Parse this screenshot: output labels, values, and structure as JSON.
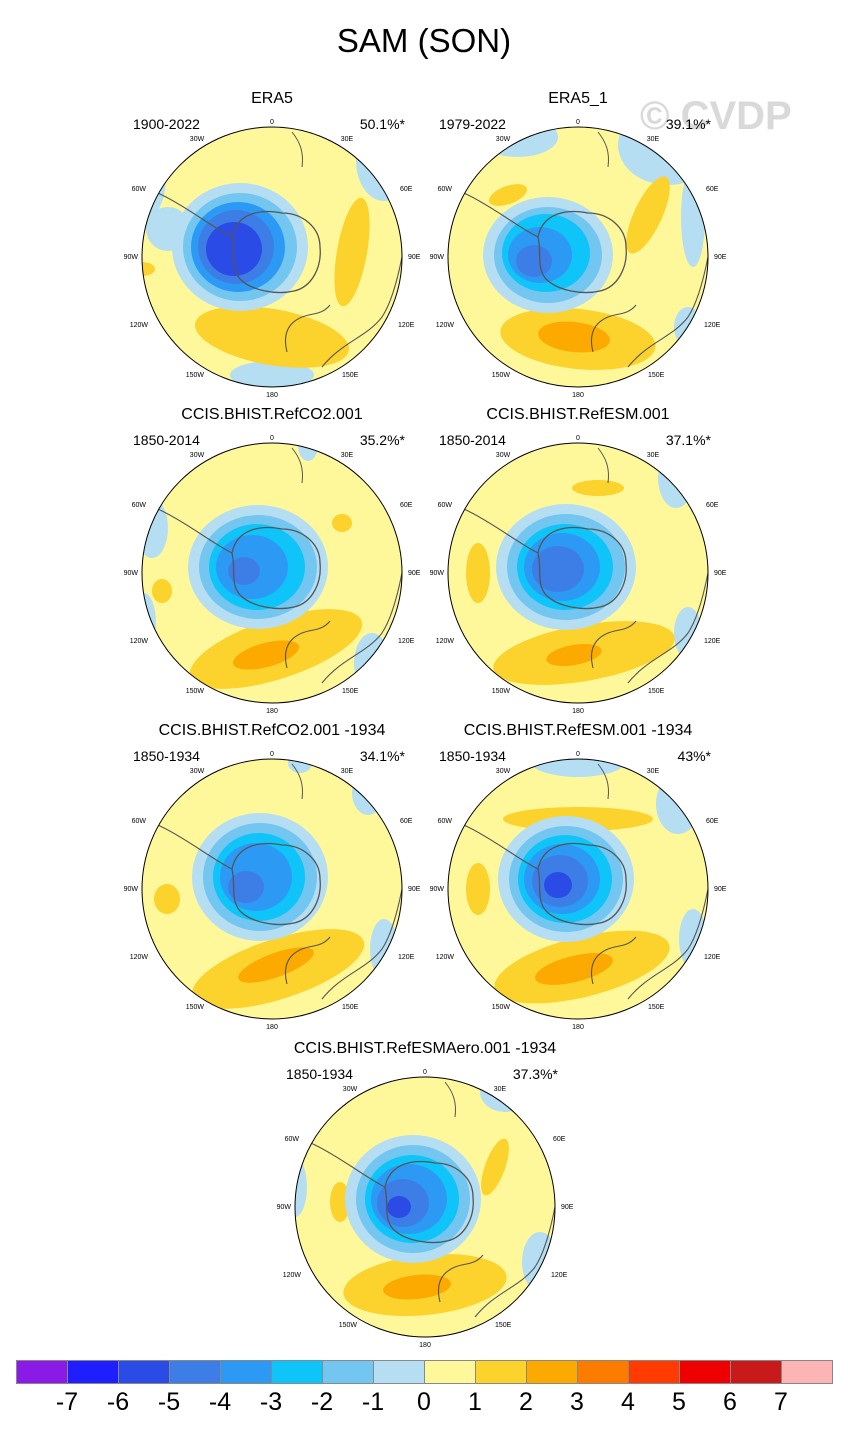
{
  "title": "SAM (SON)",
  "watermark": "© CVDP",
  "panels": [
    {
      "title": "ERA5",
      "period": "1900-2022",
      "pct": "50.1%*",
      "variant": "era5"
    },
    {
      "title": "ERA5_1",
      "period": "1979-2022",
      "pct": "39.1%*",
      "variant": "era51"
    },
    {
      "title": "CCIS.BHIST.RefCO2.001",
      "period": "1850-2014",
      "pct": "35.2%*",
      "variant": "co2"
    },
    {
      "title": "CCIS.BHIST.RefESM.001",
      "period": "1850-2014",
      "pct": "37.1%*",
      "variant": "esm"
    },
    {
      "title": "CCIS.BHIST.RefCO2.001 -1934",
      "period": "1850-1934",
      "pct": "34.1%*",
      "variant": "co2b"
    },
    {
      "title": "CCIS.BHIST.RefESM.001 -1934",
      "period": "1850-1934",
      "pct": "43%*",
      "variant": "esmb"
    },
    {
      "title": "CCIS.BHIST.RefESMAero.001 -1934",
      "period": "1850-1934",
      "pct": "37.3%*",
      "variant": "aero"
    }
  ],
  "lon_labels": {
    "top": "0",
    "ne": "30E",
    "e60": "60E",
    "e90": "90E",
    "e120": "120E",
    "e150": "150E",
    "bottom": "180",
    "w150": "150W",
    "w120": "120W",
    "w90": "90W",
    "w60": "60W",
    "nw": "30W"
  },
  "colorbar": {
    "colors": [
      "#8a1be6",
      "#1e1eff",
      "#2b4be6",
      "#3c7ee6",
      "#2c9af5",
      "#0fc4f9",
      "#72c6f0",
      "#b5def2",
      "#fff89b",
      "#fcd22c",
      "#fca900",
      "#fc7c00",
      "#ff3b00",
      "#ee0000",
      "#c81a1a",
      "#fcb4b4"
    ],
    "labels": [
      "-7",
      "-6",
      "-5",
      "-4",
      "-3",
      "-2",
      "-1",
      "0",
      "1",
      "2",
      "3",
      "4",
      "5",
      "6",
      "7"
    ]
  },
  "chart_data": {
    "type": "heatmap",
    "title": "SAM (SON)",
    "projection": "south polar stereographic",
    "units_range": [
      -7,
      7
    ],
    "levels": [
      -7,
      -6,
      -5,
      -4,
      -3,
      -2,
      -1,
      0,
      1,
      2,
      3,
      4,
      5,
      6,
      7
    ],
    "series": [
      {
        "name": "ERA5",
        "period": "1900-2022",
        "variance_explained": "50.1%*",
        "min_approx": -5,
        "max_approx": 2
      },
      {
        "name": "ERA5_1",
        "period": "1979-2022",
        "variance_explained": "39.1%*",
        "min_approx": -5,
        "max_approx": 3
      },
      {
        "name": "CCIS.BHIST.RefCO2.001",
        "period": "1850-2014",
        "variance_explained": "35.2%*",
        "min_approx": -4,
        "max_approx": 3
      },
      {
        "name": "CCIS.BHIST.RefESM.001",
        "period": "1850-2014",
        "variance_explained": "37.1%*",
        "min_approx": -4,
        "max_approx": 2
      },
      {
        "name": "CCIS.BHIST.RefCO2.001 -1934",
        "period": "1850-1934",
        "variance_explained": "34.1%*",
        "min_approx": -4,
        "max_approx": 3
      },
      {
        "name": "CCIS.BHIST.RefESM.001 -1934",
        "period": "1850-1934",
        "variance_explained": "43%*",
        "min_approx": -5,
        "max_approx": 3
      },
      {
        "name": "CCIS.BHIST.RefESMAero.001 -1934",
        "period": "1850-1934",
        "variance_explained": "37.3%*",
        "min_approx": -5,
        "max_approx": 3
      }
    ]
  }
}
